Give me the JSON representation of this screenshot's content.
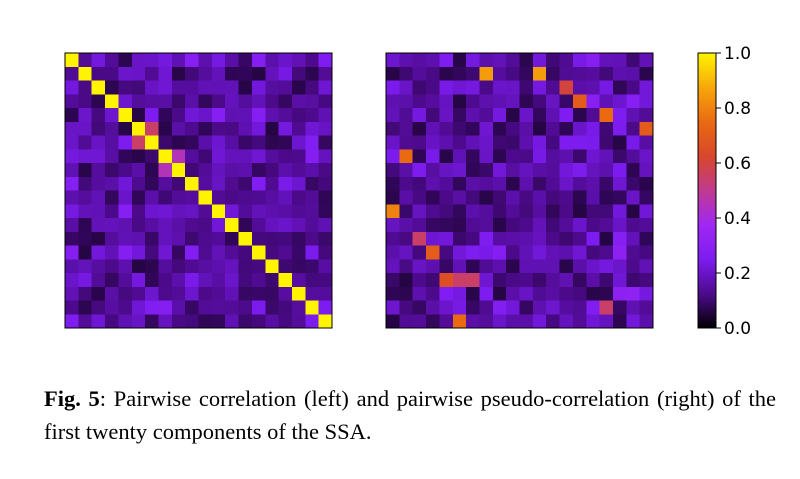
{
  "chart_data": {
    "type": "heatmap",
    "colormap": "gnuplot",
    "colorbar": {
      "range": [
        0,
        1
      ],
      "ticks": [
        "0.0",
        "0.2",
        "0.4",
        "0.6",
        "0.8",
        "1.0"
      ],
      "colors": [
        "#000000",
        "#4d0a8c",
        "#7d1cf0",
        "#a028f5",
        "#c03a8f",
        "#d8472a",
        "#ea6a12",
        "#f7a80a",
        "#fff400"
      ]
    },
    "panels": [
      {
        "name": "Pairwise correlation",
        "size": 20,
        "diagonal": 1.0,
        "grid_visible": false,
        "note_high_values": [
          {
            "row": 5,
            "col": 6,
            "value": 0.55
          },
          {
            "row": 6,
            "col": 5,
            "value": 0.55
          },
          {
            "row": 7,
            "col": 8,
            "value": 0.45
          },
          {
            "row": 8,
            "col": 7,
            "value": 0.45
          }
        ]
      },
      {
        "name": "Pairwise pseudo-correlation",
        "size": 20,
        "grid_visible": false,
        "note_high_values": [
          {
            "row": 1,
            "col": 7,
            "value": 0.85
          },
          {
            "row": 1,
            "col": 11,
            "value": 0.85
          },
          {
            "row": 2,
            "col": 13,
            "value": 0.6
          },
          {
            "row": 3,
            "col": 14,
            "value": 0.7
          },
          {
            "row": 4,
            "col": 16,
            "value": 0.75
          },
          {
            "row": 5,
            "col": 19,
            "value": 0.7
          },
          {
            "row": 7,
            "col": 1,
            "value": 0.75
          },
          {
            "row": 11,
            "col": 0,
            "value": 0.8
          },
          {
            "row": 13,
            "col": 2,
            "value": 0.55
          },
          {
            "row": 14,
            "col": 3,
            "value": 0.7
          },
          {
            "row": 16,
            "col": 4,
            "value": 0.65
          },
          {
            "row": 16,
            "col": 5,
            "value": 0.55
          },
          {
            "row": 16,
            "col": 6,
            "value": 0.55
          },
          {
            "row": 18,
            "col": 16,
            "value": 0.55
          },
          {
            "row": 19,
            "col": 5,
            "value": 0.75
          }
        ]
      }
    ]
  },
  "caption": {
    "label": "Fig. 5",
    "text": ": Pairwise correlation (left) and pairwise pseudo-correlation (right) of the first twenty components of the SSA."
  }
}
